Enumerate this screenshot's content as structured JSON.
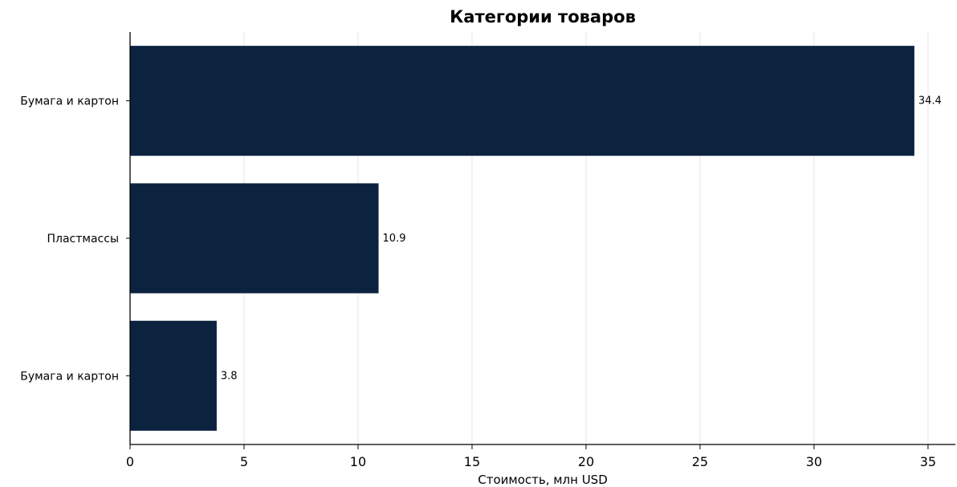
{
  "chart_data": {
    "type": "bar",
    "orientation": "horizontal",
    "title": "Категории товаров",
    "xlabel": "Стоимость, млн USD",
    "ylabel": "",
    "categories": [
      "Бумага и картон",
      "Пластмассы",
      "Бумага и картон"
    ],
    "values": [
      34.4,
      10.9,
      3.8
    ],
    "data_labels": [
      "34.4",
      "10.9",
      "3.8"
    ],
    "xlim": [
      0,
      36.2
    ],
    "xticks": [
      0,
      5,
      10,
      15,
      20,
      25,
      30,
      35
    ],
    "grid": "vertical",
    "legend": "none",
    "colors": {
      "bar": "#0c2340",
      "grid": "#e6e6e6",
      "axis": "#000000"
    }
  }
}
